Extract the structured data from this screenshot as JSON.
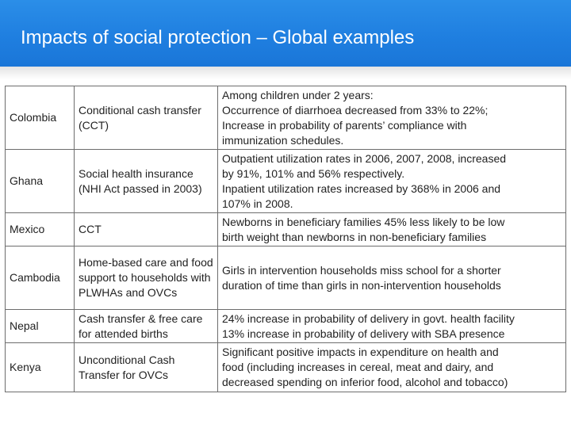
{
  "slide": {
    "title": "Impacts of social protection – Global examples",
    "accent_color": "#1f7fe0"
  },
  "table": {
    "rows": [
      {
        "country": "Colombia",
        "program": "Conditional cash transfer (CCT)",
        "impact": [
          "Among children under 2 years:",
          "Occurrence of diarrhoea decreased from 33% to 22%;",
          "Increase in probability of parents’ compliance with",
          "immunization schedules."
        ]
      },
      {
        "country": "Ghana",
        "program": "Social health insurance (NHI Act passed in 2003)",
        "impact": [
          "Outpatient utilization rates in 2006, 2007, 2008, increased",
          "by 91%, 101% and 56% respectively.",
          "Inpatient utilization rates increased by 368% in 2006 and",
          "107% in 2008."
        ]
      },
      {
        "country": "Mexico",
        "program": "CCT",
        "impact": [
          "Newborns in beneficiary families 45% less likely to be low",
          "birth weight than newborns in non-beneficiary families"
        ]
      },
      {
        "country": "Cambodia",
        "program": "Home-based care and food support to households with PLWHAs and OVCs",
        "impact": [
          "Girls in intervention households miss school for a shorter",
          "duration of time than girls in non-intervention households"
        ]
      },
      {
        "country": "Nepal",
        "program": "Cash transfer & free care for attended births",
        "impact": [
          "24% increase in probability of delivery in govt. health facility",
          "13% increase in probability of delivery with SBA presence"
        ]
      },
      {
        "country": "Kenya",
        "program": "Unconditional Cash Transfer for OVCs",
        "impact": [
          "Significant positive impacts in expenditure on health and",
          "food (including increases in cereal, meat and dairy, and",
          "decreased spending on inferior food, alcohol and tobacco)"
        ]
      }
    ]
  }
}
